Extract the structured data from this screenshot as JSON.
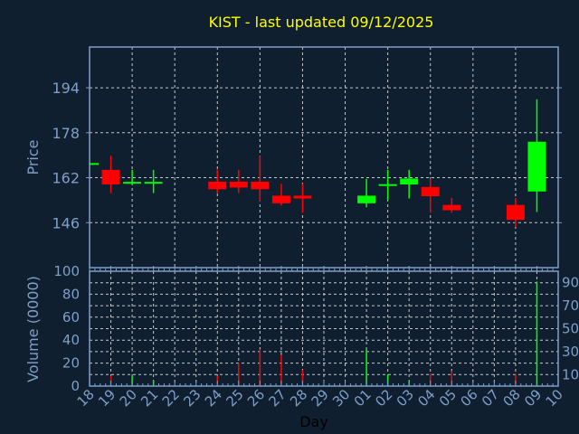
{
  "chart_data": [
    {
      "type": "candlestick",
      "title": "KIST - last updated 09/12/2025",
      "ylabel": "Price",
      "yticks": [
        146,
        162,
        178,
        194
      ],
      "ylim": [
        130,
        208.5
      ],
      "grid": true,
      "up_color": "#00ff00",
      "down_color": "#ff0000",
      "title_color": "#ffff00",
      "categories": [
        "18",
        "19",
        "20",
        "21",
        "22",
        "23",
        "24",
        "25",
        "26",
        "27",
        "28",
        "29",
        "30",
        "01",
        "02",
        "03",
        "04",
        "05",
        "06",
        "07",
        "08",
        "09",
        "10"
      ],
      "candles": [
        {
          "day": "18",
          "open": 167.0,
          "high": 167.2,
          "low": 167.0,
          "close": 167.2
        },
        {
          "day": "19",
          "open": 164.8,
          "high": 169.8,
          "low": 156.5,
          "close": 159.6
        },
        {
          "day": "20",
          "open": 160.2,
          "high": 164.8,
          "low": 159.6,
          "close": 160.5
        },
        {
          "day": "21",
          "open": 160.2,
          "high": 164.8,
          "low": 156.5,
          "close": 160.5
        },
        {
          "day": "24",
          "open": 160.6,
          "high": 164.8,
          "low": 156.5,
          "close": 157.9
        },
        {
          "day": "25",
          "open": 160.6,
          "high": 164.8,
          "low": 156.5,
          "close": 158.5
        },
        {
          "day": "26",
          "open": 160.6,
          "high": 169.8,
          "low": 153.5,
          "close": 157.9
        },
        {
          "day": "27",
          "open": 155.6,
          "high": 159.8,
          "low": 152.1,
          "close": 152.9
        },
        {
          "day": "28",
          "open": 155.6,
          "high": 159.8,
          "low": 149.5,
          "close": 154.6
        },
        {
          "day": "01",
          "open": 152.9,
          "high": 161.6,
          "low": 151.5,
          "close": 155.6
        },
        {
          "day": "02",
          "open": 159.4,
          "high": 164.8,
          "low": 154.0,
          "close": 159.7
        },
        {
          "day": "03",
          "open": 159.6,
          "high": 164.8,
          "low": 154.6,
          "close": 161.7
        },
        {
          "day": "04",
          "open": 158.7,
          "high": 161.7,
          "low": 149.5,
          "close": 155.4
        },
        {
          "day": "05",
          "open": 152.3,
          "high": 154.8,
          "low": 149.5,
          "close": 150.4
        },
        {
          "day": "08",
          "open": 152.3,
          "high": 154.8,
          "low": 144.5,
          "close": 147.0
        },
        {
          "day": "09",
          "open": 157.1,
          "high": 189.9,
          "low": 149.8,
          "close": 174.8
        }
      ]
    },
    {
      "type": "bar",
      "ylabel": "Volume (0000)",
      "xlabel": "Day",
      "ylim": [
        0,
        100
      ],
      "yticks": [
        0,
        10,
        20,
        30,
        40,
        50,
        60,
        70,
        80,
        90,
        100
      ],
      "grid": true,
      "bars": [
        {
          "day": "19",
          "value": 9,
          "color": "#ff0000"
        },
        {
          "day": "20",
          "value": 9,
          "color": "#00ff00"
        },
        {
          "day": "21",
          "value": 5,
          "color": "#00ff00"
        },
        {
          "day": "24",
          "value": 9,
          "color": "#ff0000"
        },
        {
          "day": "25",
          "value": 20,
          "color": "#ff0000"
        },
        {
          "day": "26",
          "value": 32,
          "color": "#ff0000"
        },
        {
          "day": "27",
          "value": 27,
          "color": "#ff0000"
        },
        {
          "day": "28",
          "value": 14,
          "color": "#ff0000"
        },
        {
          "day": "01",
          "value": 32,
          "color": "#00ff00"
        },
        {
          "day": "02",
          "value": 10,
          "color": "#00ff00"
        },
        {
          "day": "03",
          "value": 5,
          "color": "#00ff00"
        },
        {
          "day": "04",
          "value": 11,
          "color": "#ff0000"
        },
        {
          "day": "05",
          "value": 13,
          "color": "#ff0000"
        },
        {
          "day": "08",
          "value": 10,
          "color": "#ff0000"
        },
        {
          "day": "09",
          "value": 91,
          "color": "#00ff00"
        }
      ]
    }
  ]
}
